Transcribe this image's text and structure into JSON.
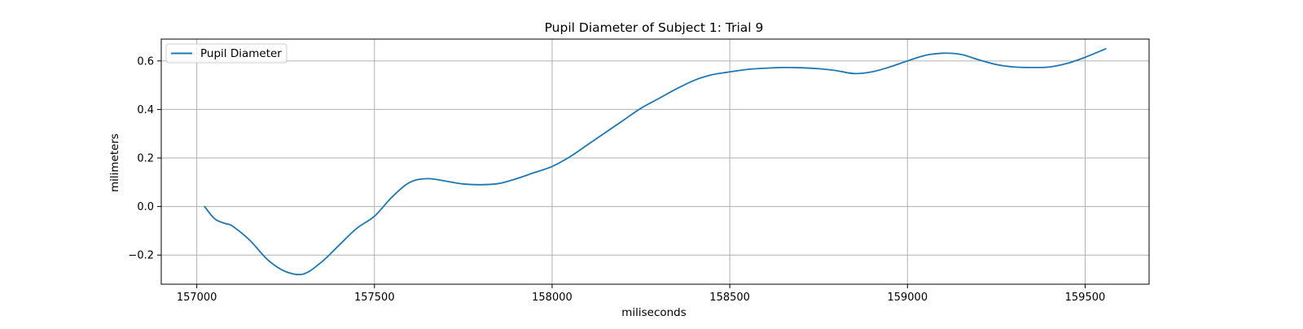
{
  "chart_data": {
    "type": "line",
    "title": "Pupil Diameter of Subject 1: Trial 9",
    "xlabel": "miliseconds",
    "ylabel": "milimeters",
    "xlim": [
      156900,
      159680
    ],
    "ylim": [
      -0.32,
      0.69
    ],
    "xticks": [
      157000,
      157500,
      158000,
      158500,
      159000,
      159500
    ],
    "xtick_labels": [
      "157000",
      "157500",
      "158000",
      "158500",
      "159000",
      "159500"
    ],
    "yticks": [
      -0.2,
      0.0,
      0.2,
      0.4,
      0.6
    ],
    "ytick_labels": [
      "−0.2",
      "0.0",
      "0.2",
      "0.4",
      "0.6"
    ],
    "grid": true,
    "legend_position": "upper left",
    "series": [
      {
        "name": "Pupil Diameter",
        "color": "#1f77b4",
        "x": [
          157022,
          157050,
          157080,
          157100,
          157150,
          157200,
          157250,
          157300,
          157350,
          157400,
          157450,
          157500,
          157550,
          157600,
          157650,
          157700,
          157750,
          157800,
          157850,
          157900,
          157950,
          158000,
          158050,
          158100,
          158150,
          158200,
          158250,
          158300,
          158350,
          158400,
          158450,
          158500,
          158550,
          158600,
          158650,
          158700,
          158750,
          158800,
          158850,
          158900,
          158950,
          159000,
          159050,
          159100,
          159150,
          159200,
          159250,
          159300,
          159350,
          159400,
          159450,
          159500,
          159558
        ],
        "y": [
          0.0,
          -0.05,
          -0.07,
          -0.08,
          -0.14,
          -0.22,
          -0.268,
          -0.278,
          -0.23,
          -0.16,
          -0.09,
          -0.04,
          0.04,
          0.1,
          0.115,
          0.105,
          0.093,
          0.09,
          0.095,
          0.115,
          0.14,
          0.165,
          0.205,
          0.255,
          0.305,
          0.355,
          0.405,
          0.445,
          0.485,
          0.52,
          0.543,
          0.555,
          0.565,
          0.57,
          0.573,
          0.572,
          0.568,
          0.56,
          0.548,
          0.555,
          0.575,
          0.6,
          0.623,
          0.632,
          0.627,
          0.605,
          0.585,
          0.575,
          0.573,
          0.575,
          0.59,
          0.615,
          0.65
        ]
      }
    ]
  }
}
